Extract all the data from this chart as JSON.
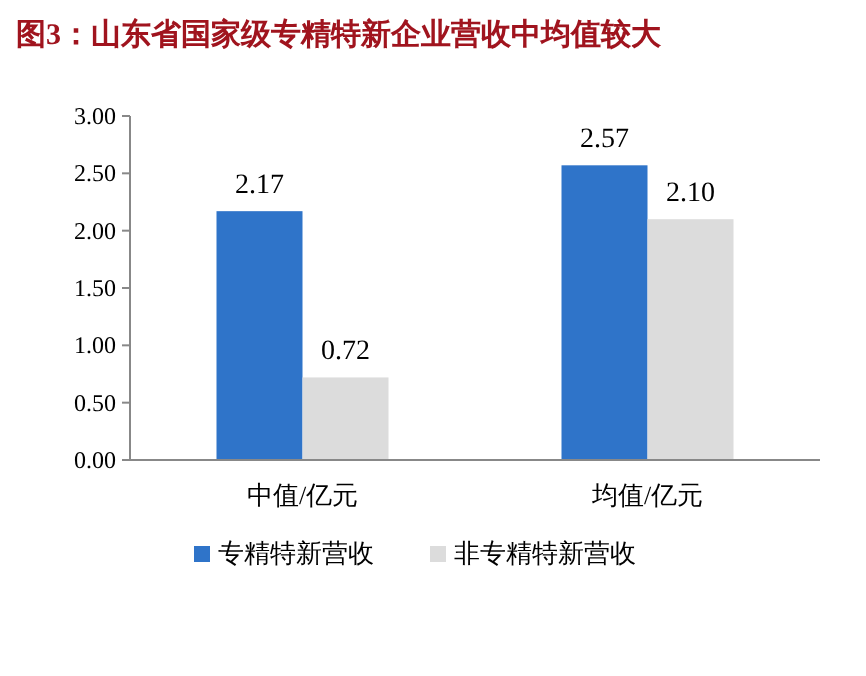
{
  "chart_data": {
    "type": "bar",
    "title": "图3：山东省国家级专精特新企业营收中均值较大",
    "categories": [
      "中值/亿元",
      "均值/亿元"
    ],
    "series": [
      {
        "name": "专精特新营收",
        "color": "#2f74c9",
        "values": [
          2.17,
          2.57
        ],
        "value_labels": [
          "2.17",
          "2.57"
        ]
      },
      {
        "name": "非专精特新营收",
        "color": "#dcdcdc",
        "values": [
          0.72,
          2.1
        ],
        "value_labels": [
          "0.72",
          "2.10"
        ]
      }
    ],
    "ylim": [
      0,
      3
    ],
    "yticks": [
      {
        "value": 0,
        "label": "0.00"
      },
      {
        "value": 0.5,
        "label": "0.50"
      },
      {
        "value": 1,
        "label": "1.00"
      },
      {
        "value": 1.5,
        "label": "1.50"
      },
      {
        "value": 2,
        "label": "2.00"
      },
      {
        "value": 2.5,
        "label": "2.50"
      },
      {
        "value": 3,
        "label": "3.00"
      }
    ],
    "grid": false,
    "legend": "bottom"
  }
}
